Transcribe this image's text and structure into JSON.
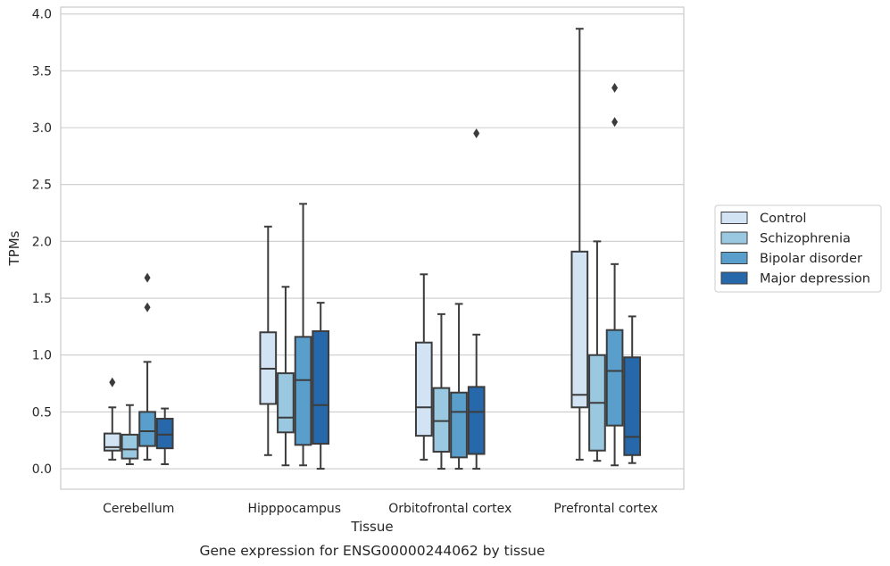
{
  "caption": "Gene expression for ENSG00000244062 by tissue",
  "chart_data": {
    "type": "box",
    "xlabel": "Tissue",
    "ylabel": "TPMs",
    "ylim": [
      -0.18,
      4.06
    ],
    "yticks": [
      0.0,
      0.5,
      1.0,
      1.5,
      2.0,
      2.5,
      3.0,
      3.5,
      4.0
    ],
    "ytick_labels": [
      "0.0",
      "0.5",
      "1.0",
      "1.5",
      "2.0",
      "2.5",
      "3.0",
      "3.5",
      "4.0"
    ],
    "grid": "horizontal",
    "legend_position": "right",
    "categories": [
      "Cerebellum",
      "Hipppocampus",
      "Orbitofrontal cortex",
      "Prefrontal cortex"
    ],
    "series": [
      {
        "name": "Control",
        "color": "#d2e3f3",
        "boxes": [
          {
            "whislo": 0.08,
            "q1": 0.16,
            "med": 0.19,
            "q3": 0.31,
            "whishi": 0.54,
            "fliers": [
              0.76
            ]
          },
          {
            "whislo": 0.12,
            "q1": 0.57,
            "med": 0.88,
            "q3": 1.2,
            "whishi": 2.13,
            "fliers": []
          },
          {
            "whislo": 0.08,
            "q1": 0.29,
            "med": 0.54,
            "q3": 1.11,
            "whishi": 1.71,
            "fliers": []
          },
          {
            "whislo": 0.08,
            "q1": 0.54,
            "med": 0.65,
            "q3": 1.91,
            "whishi": 3.87,
            "fliers": []
          }
        ]
      },
      {
        "name": "Schizophrenia",
        "color": "#9ac8e0",
        "boxes": [
          {
            "whislo": 0.04,
            "q1": 0.09,
            "med": 0.17,
            "q3": 0.3,
            "whishi": 0.56,
            "fliers": []
          },
          {
            "whislo": 0.03,
            "q1": 0.32,
            "med": 0.45,
            "q3": 0.84,
            "whishi": 1.6,
            "fliers": []
          },
          {
            "whislo": 0.0,
            "q1": 0.15,
            "med": 0.42,
            "q3": 0.71,
            "whishi": 1.36,
            "fliers": []
          },
          {
            "whislo": 0.07,
            "q1": 0.16,
            "med": 0.58,
            "q3": 1.0,
            "whishi": 2.0,
            "fliers": []
          }
        ]
      },
      {
        "name": "Bipolar disorder",
        "color": "#5a9fcc",
        "boxes": [
          {
            "whislo": 0.08,
            "q1": 0.2,
            "med": 0.33,
            "q3": 0.5,
            "whishi": 0.94,
            "fliers": [
              1.42,
              1.68
            ]
          },
          {
            "whislo": 0.03,
            "q1": 0.21,
            "med": 0.78,
            "q3": 1.16,
            "whishi": 2.33,
            "fliers": []
          },
          {
            "whislo": 0.0,
            "q1": 0.1,
            "med": 0.5,
            "q3": 0.67,
            "whishi": 1.45,
            "fliers": []
          },
          {
            "whislo": 0.03,
            "q1": 0.38,
            "med": 0.86,
            "q3": 1.22,
            "whishi": 1.8,
            "fliers": [
              3.05,
              3.35
            ]
          }
        ]
      },
      {
        "name": "Major depression",
        "color": "#2668a9",
        "boxes": [
          {
            "whislo": 0.04,
            "q1": 0.18,
            "med": 0.3,
            "q3": 0.44,
            "whishi": 0.53,
            "fliers": []
          },
          {
            "whislo": 0.0,
            "q1": 0.22,
            "med": 0.56,
            "q3": 1.21,
            "whishi": 1.46,
            "fliers": []
          },
          {
            "whislo": 0.0,
            "q1": 0.13,
            "med": 0.5,
            "q3": 0.72,
            "whishi": 1.18,
            "fliers": [
              2.95
            ]
          },
          {
            "whislo": 0.05,
            "q1": 0.12,
            "med": 0.28,
            "q3": 0.98,
            "whishi": 1.34,
            "fliers": []
          }
        ]
      }
    ]
  }
}
